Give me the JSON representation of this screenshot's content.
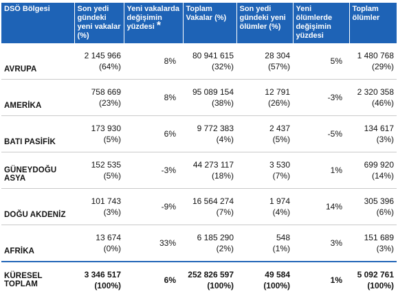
{
  "headers": [
    "DSÖ Bölgesi",
    "Son yedi gündeki yeni vakalar (%)",
    "Yeni vakalarda değişimin yüzdesi",
    "Toplam Vakalar (%)",
    "Son yedi gündeki yeni ölümler (%)",
    "Yeni ölümlerde değişimin yüzdesi",
    "Toplam ölümler"
  ],
  "header_star": "*",
  "rows": [
    {
      "region": "AVRUPA",
      "new_cases": "2 145 966",
      "new_cases_pct": "(64%)",
      "cases_change": "8%",
      "total_cases": "80 941 615",
      "total_cases_pct": "(32%)",
      "new_deaths": "28 304",
      "new_deaths_pct": "(57%)",
      "deaths_change": "5%",
      "total_deaths": "1 480 768",
      "total_deaths_pct": "(29%)"
    },
    {
      "region": "AMERİKA",
      "new_cases": "758 669",
      "new_cases_pct": "(23%)",
      "cases_change": "8%",
      "total_cases": "95 089 154",
      "total_cases_pct": "(38%)",
      "new_deaths": "12 791",
      "new_deaths_pct": "(26%)",
      "deaths_change": "-3%",
      "total_deaths": "2 320 358",
      "total_deaths_pct": "(46%)"
    },
    {
      "region": "BATI PASİFİK",
      "new_cases": "173 930",
      "new_cases_pct": "(5%)",
      "cases_change": "6%",
      "total_cases": "9 772 383",
      "total_cases_pct": "(4%)",
      "new_deaths": "2 437",
      "new_deaths_pct": "(5%)",
      "deaths_change": "-5%",
      "total_deaths": "134 617",
      "total_deaths_pct": "(3%)"
    },
    {
      "region": "GÜNEYDOĞU ASYA",
      "new_cases": "152 535",
      "new_cases_pct": "(5%)",
      "cases_change": "-3%",
      "total_cases": "44 273 117",
      "total_cases_pct": "(18%)",
      "new_deaths": "3 530",
      "new_deaths_pct": "(7%)",
      "deaths_change": "1%",
      "total_deaths": "699 920",
      "total_deaths_pct": "(14%)"
    },
    {
      "region": "DOĞU AKDENİZ",
      "new_cases": "101 743",
      "new_cases_pct": "(3%)",
      "cases_change": "-9%",
      "total_cases": "16 564 274",
      "total_cases_pct": "(7%)",
      "new_deaths": "1 974",
      "new_deaths_pct": "(4%)",
      "deaths_change": "14%",
      "total_deaths": "305 396",
      "total_deaths_pct": "(6%)"
    },
    {
      "region": "AFRİKA",
      "new_cases": "13 674",
      "new_cases_pct": "(0%)",
      "cases_change": "33%",
      "total_cases": "6 185 290",
      "total_cases_pct": "(2%)",
      "new_deaths": "548",
      "new_deaths_pct": "(1%)",
      "deaths_change": "3%",
      "total_deaths": "151 689",
      "total_deaths_pct": "(3%)"
    }
  ],
  "total": {
    "region": "KÜRESEL TOPLAM",
    "new_cases": "3 346 517",
    "new_cases_pct": "(100%)",
    "cases_change": "6%",
    "total_cases": "252 826 597",
    "total_cases_pct": "(100%)",
    "new_deaths": "49 584",
    "new_deaths_pct": "(100%)",
    "deaths_change": "1%",
    "total_deaths": "5 092 761",
    "total_deaths_pct": "(100%)"
  },
  "colors": {
    "header_bg": "#1e63b6",
    "header_text": "#ffffff"
  }
}
